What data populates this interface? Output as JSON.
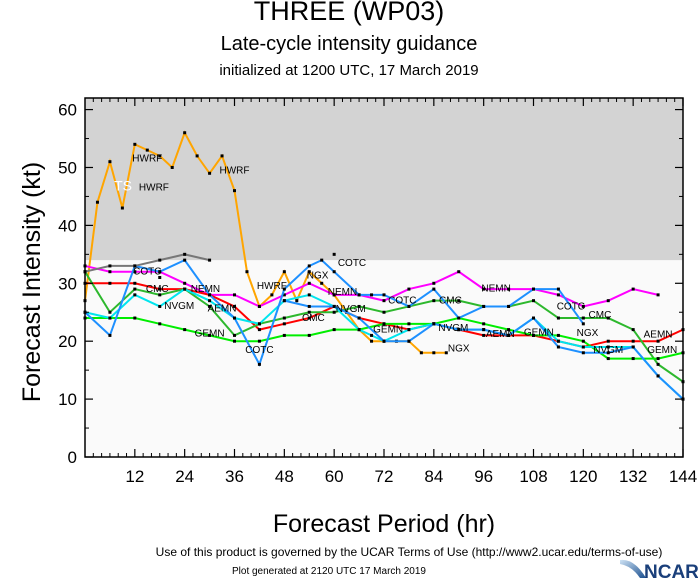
{
  "header": {
    "title": "THREE (WP03)",
    "subtitle": "Late-cycle intensity guidance",
    "initialized": "initialized at 1200 UTC, 17 March 2019"
  },
  "footer": {
    "terms": "Use of this product is governed by the UCAR Terms of Use (http://www2.ucar.edu/terms-of-use)",
    "generated": "Plot generated at 2120 UTC   17 March 2019",
    "logo_text": "NCAR"
  },
  "chart_data": {
    "type": "line",
    "xlabel": "Forecast Period (hr)",
    "ylabel": "Forecast Intensity (kt)",
    "xlim": [
      0,
      144
    ],
    "ylim": [
      0,
      62
    ],
    "xticks": [
      12,
      24,
      36,
      48,
      60,
      72,
      84,
      96,
      108,
      120,
      132,
      144
    ],
    "yticks": [
      0,
      10,
      20,
      30,
      40,
      50,
      60
    ],
    "shaded_region": {
      "from": 34,
      "to": 62,
      "color": "#d3d3d3",
      "label": "TS"
    },
    "plot_background": "#fafafa",
    "series": [
      {
        "name": "HWRF",
        "color": "#ffa500",
        "x": [
          0,
          3,
          6,
          9,
          12,
          15,
          18,
          21,
          24,
          27,
          30,
          33,
          36,
          39,
          42,
          45,
          48,
          51,
          54,
          57,
          60,
          63,
          66,
          69,
          72,
          75,
          78,
          81,
          84,
          87
        ],
        "y": [
          27,
          44,
          51,
          43,
          54,
          53,
          52,
          50,
          56,
          52,
          49,
          52,
          46,
          32,
          26,
          28,
          32,
          27,
          32,
          30,
          28,
          25,
          22,
          20,
          20,
          20,
          20,
          18,
          18,
          18
        ],
        "labels": [
          [
            6,
            46
          ],
          [
            15,
            51
          ],
          [
            36,
            49
          ],
          [
            45,
            29
          ]
        ]
      },
      {
        "name": "NEMN",
        "color": "#ff00ff",
        "x": [
          0,
          6,
          12,
          18,
          24,
          30,
          36,
          42,
          48,
          54,
          60,
          66,
          72,
          78,
          84,
          90,
          96,
          102,
          108,
          114,
          120,
          126,
          132,
          138
        ],
        "y": [
          33,
          32,
          32,
          32,
          30,
          28,
          28,
          26,
          28,
          30,
          28,
          28,
          27,
          29,
          30,
          32,
          29,
          29,
          29,
          28,
          26,
          27,
          29,
          28
        ],
        "labels": [
          [
            29,
            28.5
          ],
          [
            62,
            28
          ],
          [
            99,
            28.6
          ]
        ]
      },
      {
        "name": "AEMN",
        "color": "#ff0000",
        "x": [
          0,
          6,
          12,
          18,
          24,
          30,
          36,
          42,
          48,
          54,
          60,
          66,
          72,
          78,
          84,
          90,
          96,
          102,
          108,
          114,
          120,
          126,
          132,
          138,
          144
        ],
        "y": [
          30,
          30,
          30,
          29,
          29,
          28,
          26,
          22,
          23,
          24,
          26,
          24,
          23,
          22,
          23,
          22,
          21,
          21,
          21,
          20,
          19,
          20,
          20,
          20,
          22
        ],
        "labels": [
          [
            33,
            27
          ],
          [
            100,
            20.7
          ],
          [
            138,
            20.6
          ]
        ]
      },
      {
        "name": "CMC",
        "color": "#2db82d",
        "x": [
          0,
          6,
          12,
          18,
          24,
          30,
          36,
          42,
          48,
          54,
          60,
          66,
          72,
          78,
          84,
          90,
          96,
          102,
          108,
          114,
          120,
          126,
          132,
          138,
          144
        ],
        "y": [
          32,
          25,
          29,
          28,
          29,
          26,
          21,
          23,
          24,
          25,
          25,
          26,
          25,
          26,
          27,
          27,
          26,
          26,
          27,
          24,
          24,
          24,
          22,
          16,
          13
        ],
        "labels": [
          [
            28,
            28.5
          ],
          [
            55,
            23.5
          ],
          [
            88,
            26.5
          ],
          [
            124,
            24
          ]
        ]
      },
      {
        "name": "GEMN",
        "color": "#00ee00",
        "x": [
          0,
          6,
          12,
          18,
          24,
          30,
          36,
          42,
          48,
          54,
          60,
          66,
          72,
          78,
          84,
          90,
          96,
          102,
          108,
          114,
          120,
          126,
          132,
          138,
          144
        ],
        "y": [
          24,
          24,
          24,
          23,
          22,
          21,
          20,
          20,
          21,
          21,
          22,
          22,
          23,
          23,
          23,
          24,
          23,
          22,
          21,
          21,
          20,
          17,
          17,
          17,
          18
        ],
        "labels": [
          [
            30,
            20.8
          ],
          [
            73,
            21.5
          ],
          [
            104,
            21
          ],
          [
            139,
            18
          ]
        ]
      },
      {
        "name": "NVGM",
        "color": "#00e5ee",
        "x": [
          0,
          6,
          12,
          18,
          24,
          30,
          36,
          42,
          48,
          54,
          60,
          66,
          69,
          72,
          78,
          84,
          90,
          96,
          102,
          108,
          114,
          120,
          126,
          132,
          138,
          144
        ],
        "y": [
          25,
          24,
          28,
          26,
          29,
          27,
          24,
          23,
          27,
          28,
          26,
          22,
          21,
          20,
          22,
          23,
          22,
          22,
          21,
          24,
          20,
          19,
          19,
          19,
          14,
          10
        ],
        "labels": [
          [
            28,
            27.5
          ],
          [
            64,
            25
          ],
          [
            94,
            21.8
          ],
          [
            126,
            18
          ]
        ]
      },
      {
        "name": "NGX",
        "color": "#1e90ff",
        "x": [
          48,
          54,
          60,
          66,
          72,
          78,
          84,
          90,
          96,
          102,
          108,
          114,
          120,
          126,
          132,
          138,
          144
        ],
        "y": [
          27,
          26,
          26,
          24,
          20,
          20,
          23,
          22,
          22,
          21,
          24,
          19,
          18,
          18,
          19,
          14,
          10
        ],
        "labels": [
          [
            56,
            27
          ],
          [
            90,
            22
          ],
          [
            121,
            19
          ]
        ]
      },
      {
        "name": "COTC",
        "color": "#1e90ff",
        "x": [
          0,
          6,
          12,
          18,
          24,
          30,
          36,
          42,
          48,
          54,
          57,
          60,
          66,
          69,
          72,
          78,
          84,
          90,
          96,
          102,
          108,
          114,
          120
        ],
        "y": [
          25,
          21,
          33,
          32,
          34,
          28,
          24,
          16,
          29,
          33,
          34,
          32,
          28,
          28,
          28,
          26,
          29,
          24,
          26,
          26,
          29,
          29,
          23
        ],
        "labels": [
          [
            15,
            31.5
          ],
          [
            42,
            18
          ],
          [
            59,
            33
          ],
          [
            87,
            26.5
          ],
          [
            117,
            25.5
          ]
        ]
      },
      {
        "name": "",
        "color": "#777777",
        "x": [
          0,
          6,
          12,
          18,
          24,
          30
        ],
        "y": [
          32,
          33,
          33,
          34,
          35,
          34
        ],
        "labels": []
      }
    ],
    "extra_points": [
      [
        18,
        31
      ],
      [
        60,
        35
      ]
    ],
    "grid": false,
    "legend": "none"
  }
}
